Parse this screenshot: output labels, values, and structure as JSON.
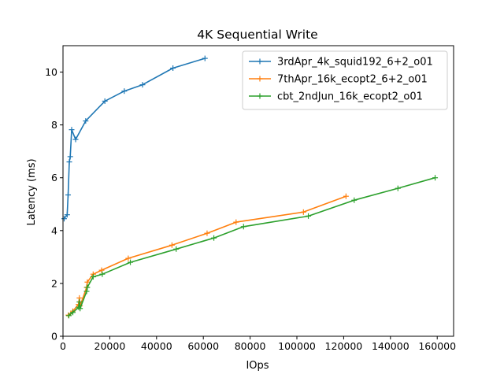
{
  "chart_data": {
    "type": "line",
    "title": "4K  Sequential Write",
    "xlabel": "IOps",
    "ylabel": "Latency (ms)",
    "xlim": [
      0,
      167000
    ],
    "ylim": [
      0,
      11
    ],
    "xticks": [
      0,
      20000,
      40000,
      60000,
      80000,
      100000,
      120000,
      140000,
      160000
    ],
    "yticks": [
      0,
      2,
      4,
      6,
      8,
      10
    ],
    "grid": false,
    "legend_position": "top-right",
    "series": [
      {
        "name": "3rdApr_4k_squid192_6+2_o01",
        "color": "#1f77b4",
        "x": [
          500,
          1800,
          2200,
          2700,
          3100,
          3700,
          5400,
          9700,
          17900,
          26200,
          34000,
          47000,
          60700
        ],
        "y": [
          4.45,
          4.6,
          5.35,
          6.6,
          6.8,
          7.82,
          7.45,
          8.15,
          8.9,
          9.28,
          9.52,
          10.15,
          10.52
        ]
      },
      {
        "name": "7thApr_16k_ecopt2_6+2_o01",
        "color": "#ff7f0e",
        "x": [
          2300,
          4200,
          6600,
          7000,
          7300,
          10100,
          10400,
          12900,
          16500,
          27900,
          46600,
          61600,
          74000,
          102800,
          121000
        ],
        "y": [
          0.8,
          0.95,
          1.2,
          1.45,
          1.15,
          1.85,
          2.05,
          2.35,
          2.5,
          2.95,
          3.45,
          3.9,
          4.32,
          4.7,
          5.3
        ]
      },
      {
        "name": "cbt_2ndJun_16k_ecopt2_o01",
        "color": "#2ca02c",
        "x": [
          2500,
          4200,
          6700,
          7000,
          7300,
          10100,
          10400,
          12900,
          16800,
          28800,
          48400,
          64500,
          77200,
          104900,
          124500,
          143200,
          159100
        ],
        "y": [
          0.78,
          0.9,
          1.1,
          1.3,
          1.05,
          1.7,
          1.85,
          2.25,
          2.35,
          2.8,
          3.3,
          3.72,
          4.15,
          4.55,
          5.15,
          5.6,
          6.0
        ]
      }
    ]
  }
}
